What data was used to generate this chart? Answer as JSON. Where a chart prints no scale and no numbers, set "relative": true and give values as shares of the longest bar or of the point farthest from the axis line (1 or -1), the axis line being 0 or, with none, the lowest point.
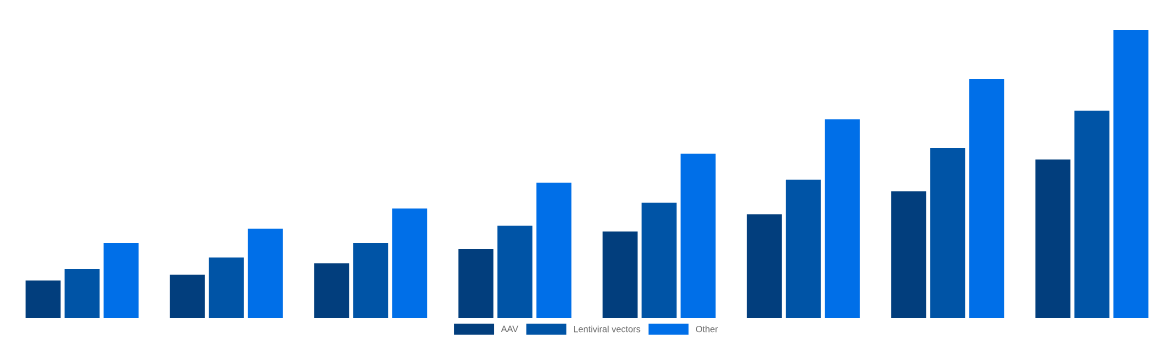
{
  "chart_data": {
    "type": "bar",
    "relative": true,
    "legend": "bottom",
    "categories": [
      null,
      null,
      null,
      null,
      null,
      null,
      null,
      null
    ],
    "series": [
      {
        "name": "AAV",
        "color": "#023e7d",
        "values": [
          0.13,
          0.15,
          0.19,
          0.24,
          0.3,
          0.36,
          0.44,
          0.55
        ]
      },
      {
        "name": "Lentiviral vectors",
        "color": "#0054a6",
        "values": [
          0.17,
          0.21,
          0.26,
          0.32,
          0.4,
          0.48,
          0.59,
          0.72
        ]
      },
      {
        "name": "Other",
        "color": "#006fe8",
        "values": [
          0.26,
          0.31,
          0.38,
          0.47,
          0.57,
          0.69,
          0.83,
          1
        ]
      }
    ]
  }
}
